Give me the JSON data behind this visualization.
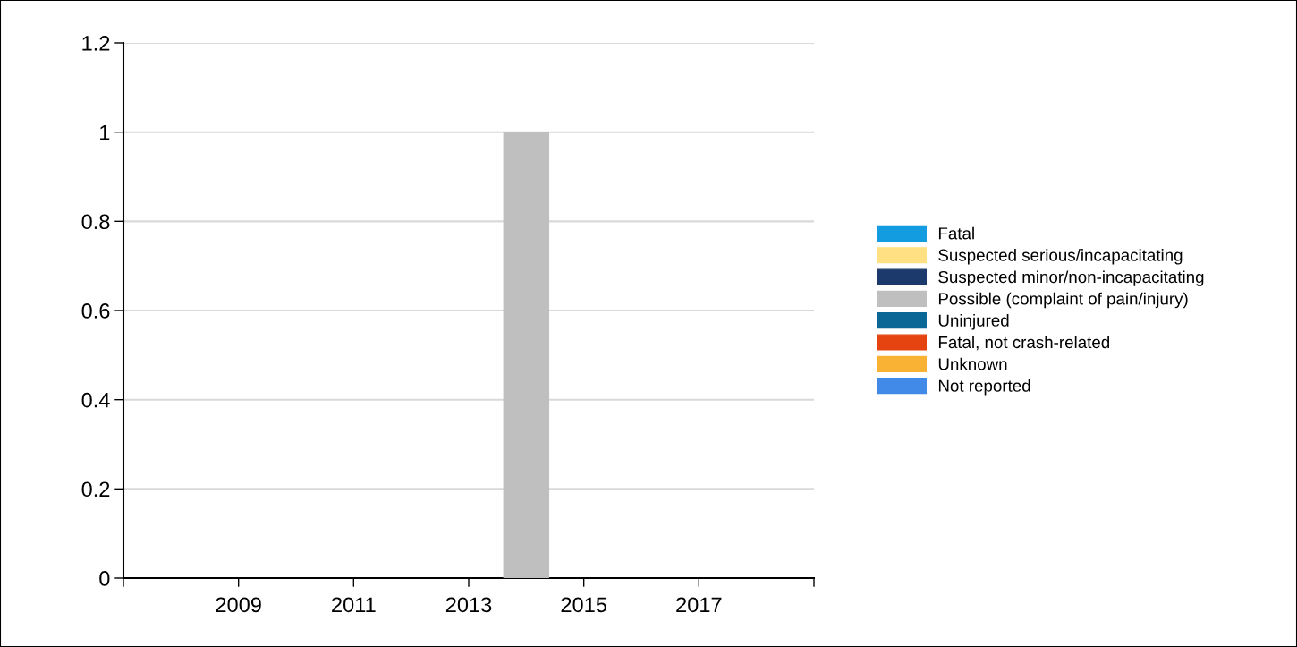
{
  "chart_data": {
    "type": "bar",
    "stacked": true,
    "x": [
      2014
    ],
    "series": [
      {
        "name": "Fatal",
        "color": "#139ce0",
        "values": [
          0
        ]
      },
      {
        "name": "Suspected serious/incapacitating",
        "color": "#ffe183",
        "values": [
          0
        ]
      },
      {
        "name": "Suspected minor/non-incapacitating",
        "color": "#1c3a6b",
        "values": [
          0
        ]
      },
      {
        "name": "Possible (complaint of pain/injury)",
        "color": "#bfbfbf",
        "values": [
          1
        ]
      },
      {
        "name": "Uninjured",
        "color": "#0b6796",
        "values": [
          0
        ]
      },
      {
        "name": "Fatal, not crash-related",
        "color": "#e5430f",
        "values": [
          0
        ]
      },
      {
        "name": "Unknown",
        "color": "#f9b233",
        "values": [
          0
        ]
      },
      {
        "name": "Not reported",
        "color": "#428ae8",
        "values": [
          0
        ]
      }
    ],
    "xlim": [
      2007,
      2019
    ],
    "xticks": [
      {
        "value": 2007,
        "label": null
      },
      2009,
      2011,
      2013,
      2015,
      2017,
      {
        "value": 2019,
        "label": null
      }
    ],
    "ylim": [
      0,
      1.2
    ],
    "yticks": [
      0,
      0.2,
      0.4,
      0.6,
      0.8,
      1,
      1.2
    ],
    "grid": "y",
    "legend": "right"
  }
}
